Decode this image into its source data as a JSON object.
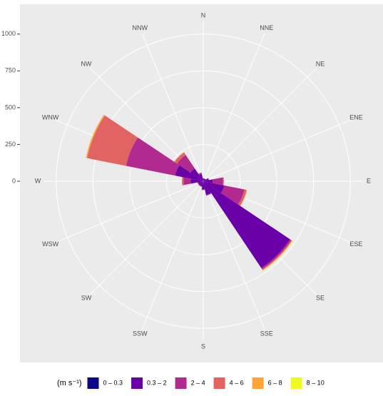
{
  "chart_data": {
    "type": "windrose",
    "categories": [
      "N",
      "NNE",
      "NE",
      "ENE",
      "E",
      "ESE",
      "SE",
      "SSE",
      "S",
      "SSW",
      "SW",
      "WSW",
      "W",
      "WNW",
      "NW",
      "NNW"
    ],
    "series": [
      {
        "name": "0 – 0.3",
        "color": "#0d0887",
        "values": [
          5,
          5,
          5,
          5,
          5,
          5,
          10,
          5,
          5,
          5,
          5,
          5,
          5,
          5,
          5,
          5
        ]
      },
      {
        "name": "0.3 – 2",
        "color": "#6a00a8",
        "values": [
          15,
          15,
          15,
          30,
          60,
          140,
          700,
          90,
          50,
          30,
          30,
          30,
          80,
          190,
          100,
          45
        ]
      },
      {
        "name": "2 – 4",
        "color": "#b12a90",
        "values": [
          0,
          0,
          0,
          5,
          70,
          140,
          10,
          5,
          5,
          5,
          5,
          5,
          50,
          340,
          110,
          10
        ]
      },
      {
        "name": "4 – 6",
        "color": "#e16462",
        "values": [
          0,
          0,
          0,
          0,
          5,
          15,
          5,
          0,
          0,
          0,
          0,
          0,
          10,
          270,
          20,
          0
        ]
      },
      {
        "name": "6 – 8",
        "color": "#fca636",
        "values": [
          0,
          0,
          0,
          0,
          0,
          3,
          5,
          0,
          0,
          0,
          0,
          0,
          0,
          8,
          3,
          0
        ]
      },
      {
        "name": "8 – 10",
        "color": "#f0f921",
        "values": [
          0,
          0,
          0,
          0,
          0,
          0,
          2,
          0,
          0,
          0,
          0,
          0,
          0,
          0,
          0,
          0
        ]
      }
    ],
    "ylim": [
      0,
      1125
    ],
    "yticks": [
      0,
      250,
      500,
      750,
      1000
    ],
    "legend_title": "(m s⁻¹)",
    "legend_position": "bottom",
    "grid": true
  }
}
